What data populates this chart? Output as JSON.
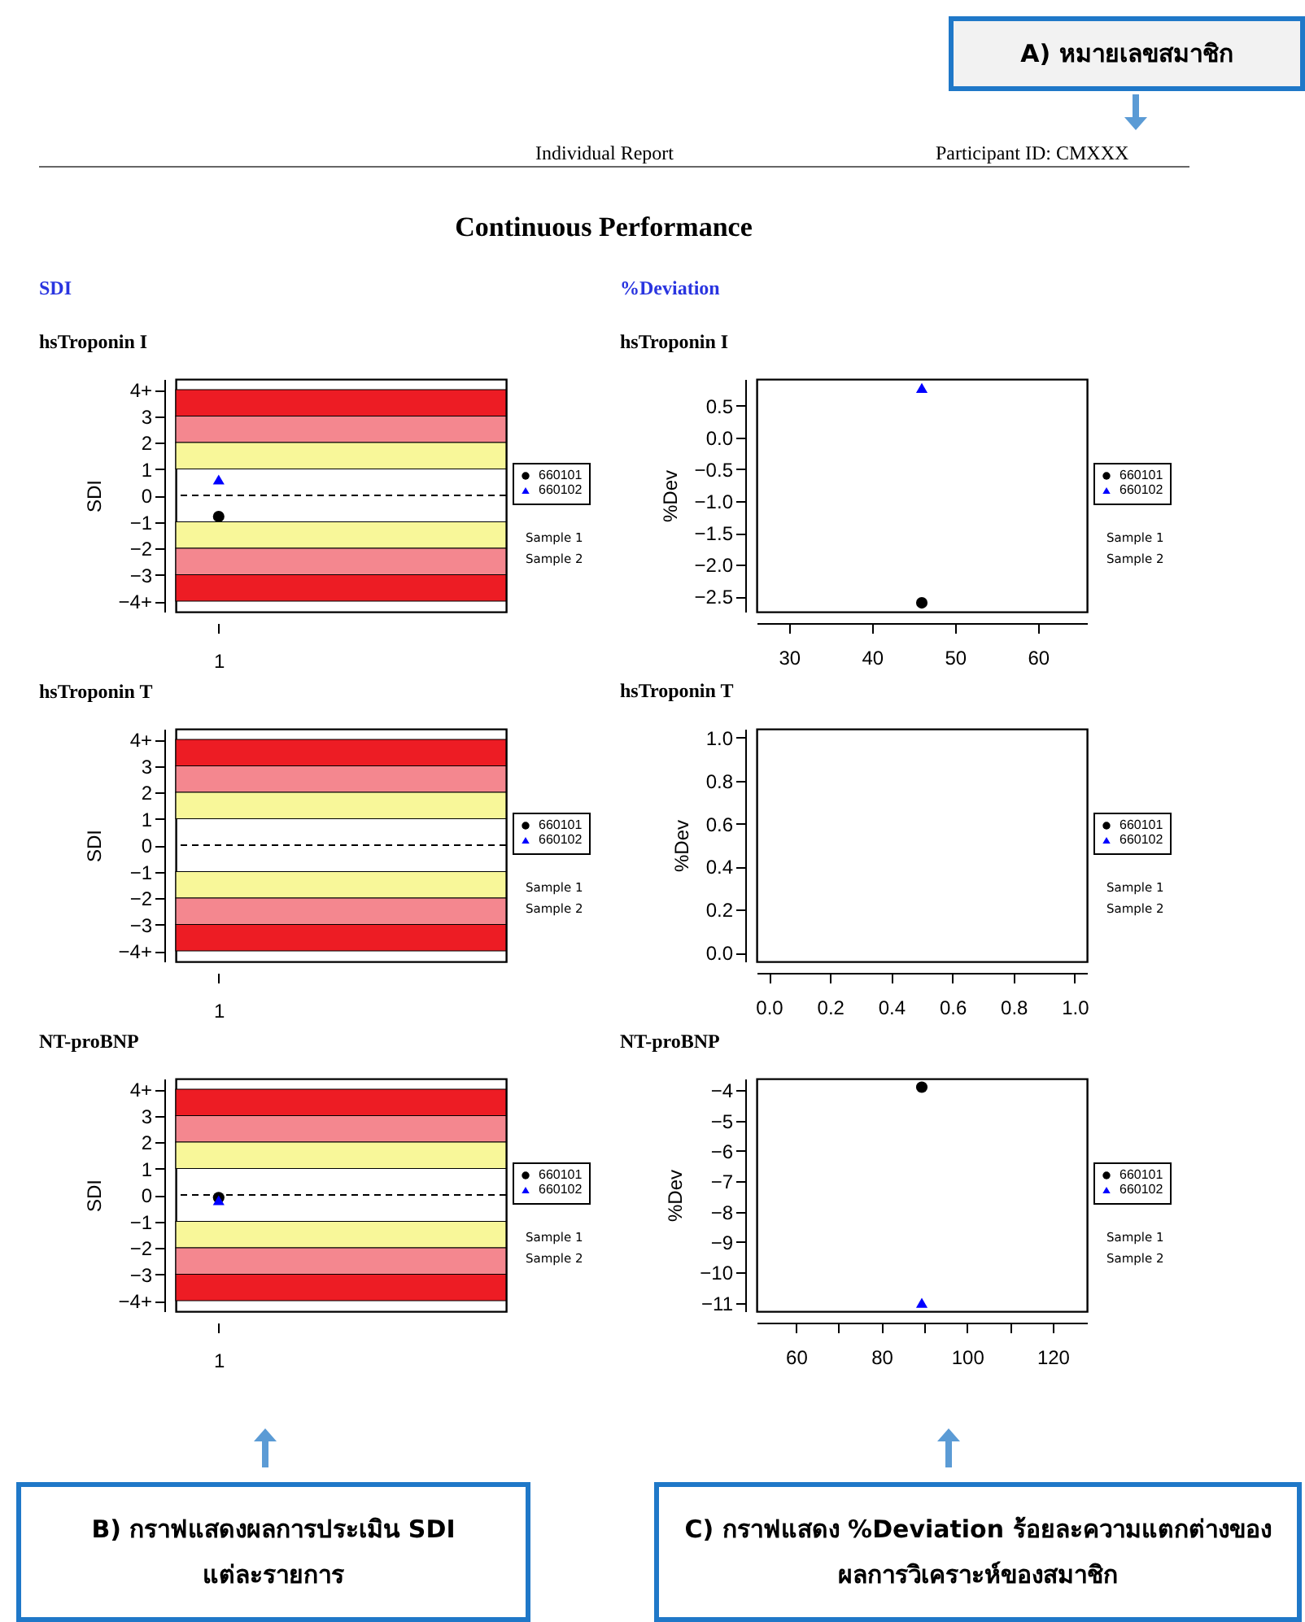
{
  "chart_data": [
    {
      "type": "other",
      "title": "Continuous Performance",
      "annotations": [
        "A) หมายเลขสมาชิก",
        "Individual Report",
        "Participant ID: CMXXX",
        "B) กราฟแสดงผลการประเมิน SDI แต่ละรายการ",
        "C) กราฟแสดง %Deviation ร้อยละความแตกต่างของผลการวิเคราะห์ของสมาชิก"
      ]
    },
    {
      "type": "scatter",
      "subtitle": "SDI",
      "title": "hsTroponin I",
      "ylabel": "SDI",
      "categories": [
        "1"
      ],
      "series": [
        {
          "name": "660101",
          "color": "#000000",
          "marker": "circle",
          "values": [
            -0.8
          ]
        },
        {
          "name": "660102",
          "color": "#0000ff",
          "marker": "triangle",
          "values": [
            0.6
          ]
        }
      ],
      "ylim": [
        -4.4,
        4.4
      ],
      "yticks": [
        {
          "value": 4,
          "label": "4+"
        },
        3,
        2,
        1,
        0,
        -1,
        -2,
        -3,
        {
          "value": -4,
          "label": "−4+"
        }
      ],
      "bands": [
        {
          "axis": "y",
          "from": 3,
          "to": 4,
          "color": "#ed1c24"
        },
        {
          "axis": "y",
          "from": 2,
          "to": 3,
          "color": "#f4878f"
        },
        {
          "axis": "y",
          "from": 1,
          "to": 2,
          "color": "#f8f799"
        },
        {
          "axis": "y",
          "from": -2,
          "to": -1,
          "color": "#f8f799"
        },
        {
          "axis": "y",
          "from": -3,
          "to": -2,
          "color": "#f4878f"
        },
        {
          "axis": "y",
          "from": -4,
          "to": -3,
          "color": "#ed1c24"
        }
      ],
      "ref_lines": [
        {
          "axis": "y",
          "value": 0,
          "color": "#000000",
          "line_style": "dashed"
        }
      ],
      "legend": "right",
      "annotations": [
        "Sample 1",
        "Sample 2"
      ]
    },
    {
      "type": "scatter",
      "subtitle": "%Deviation",
      "title": "hsTroponin I",
      "ylabel": "%Dev",
      "x": [
        46
      ],
      "series": [
        {
          "name": "660101",
          "color": "#000000",
          "marker": "circle",
          "values": [
            -2.6
          ]
        },
        {
          "name": "660102",
          "color": "#0000ff",
          "marker": "triangle",
          "values": [
            0.78
          ]
        }
      ],
      "xlim": [
        26.1,
        65.9
      ],
      "xticks": [
        30,
        40,
        50,
        60
      ],
      "ylim": [
        -2.74,
        0.92
      ],
      "yticks": [
        0.5,
        {
          "value": 0,
          "label": "0.0"
        },
        -0.5,
        {
          "value": -1,
          "label": "−1.0"
        },
        -1.5,
        {
          "value": -2,
          "label": "−2.0"
        },
        -2.5
      ],
      "legend": "right",
      "annotations": [
        "Sample 1",
        "Sample 2"
      ]
    },
    {
      "type": "scatter",
      "title": "hsTroponin T",
      "ylabel": "SDI",
      "categories": [
        "1"
      ],
      "series": [
        {
          "name": "660101",
          "color": "#000000",
          "marker": "circle",
          "values": [
            null
          ]
        },
        {
          "name": "660102",
          "color": "#0000ff",
          "marker": "triangle",
          "values": [
            null
          ]
        }
      ],
      "ylim": [
        -4.4,
        4.4
      ],
      "yticks": [
        {
          "value": 4,
          "label": "4+"
        },
        3,
        2,
        1,
        0,
        -1,
        -2,
        -3,
        {
          "value": -4,
          "label": "−4+"
        }
      ],
      "bands": [
        {
          "axis": "y",
          "from": 3,
          "to": 4,
          "color": "#ed1c24"
        },
        {
          "axis": "y",
          "from": 2,
          "to": 3,
          "color": "#f4878f"
        },
        {
          "axis": "y",
          "from": 1,
          "to": 2,
          "color": "#f8f799"
        },
        {
          "axis": "y",
          "from": -2,
          "to": -1,
          "color": "#f8f799"
        },
        {
          "axis": "y",
          "from": -3,
          "to": -2,
          "color": "#f4878f"
        },
        {
          "axis": "y",
          "from": -4,
          "to": -3,
          "color": "#ed1c24"
        }
      ],
      "ref_lines": [
        {
          "axis": "y",
          "value": 0,
          "color": "#000000",
          "line_style": "dashed"
        }
      ],
      "legend": "right",
      "annotations": [
        "Sample 1",
        "Sample 2"
      ]
    },
    {
      "type": "scatter",
      "title": "hsTroponin T",
      "ylabel": "%Dev",
      "x": [
        null
      ],
      "series": [
        {
          "name": "660101",
          "color": "#000000",
          "marker": "circle",
          "values": [
            null
          ]
        },
        {
          "name": "660102",
          "color": "#0000ff",
          "marker": "triangle",
          "values": [
            null
          ]
        }
      ],
      "xlim": [
        -0.04,
        1.04
      ],
      "xticks": [
        {
          "value": 0,
          "label": "0.0"
        },
        0.2,
        0.4,
        0.6,
        0.8,
        {
          "value": 1,
          "label": "1.0"
        }
      ],
      "ylim": [
        -0.04,
        1.04
      ],
      "yticks": [
        {
          "value": 0,
          "label": "0.0"
        },
        0.2,
        0.4,
        0.6,
        0.8,
        {
          "value": 1,
          "label": "1.0"
        }
      ],
      "legend": "right",
      "annotations": [
        "Sample 1",
        "Sample 2"
      ]
    },
    {
      "type": "scatter",
      "title": "NT-proBNP",
      "ylabel": "SDI",
      "categories": [
        "1"
      ],
      "series": [
        {
          "name": "660101",
          "color": "#000000",
          "marker": "circle",
          "values": [
            -0.1
          ]
        },
        {
          "name": "660102",
          "color": "#0000ff",
          "marker": "triangle",
          "values": [
            -0.2
          ]
        }
      ],
      "ylim": [
        -4.4,
        4.4
      ],
      "yticks": [
        {
          "value": 4,
          "label": "4+"
        },
        3,
        2,
        1,
        0,
        -1,
        -2,
        -3,
        {
          "value": -4,
          "label": "−4+"
        }
      ],
      "bands": [
        {
          "axis": "y",
          "from": 3,
          "to": 4,
          "color": "#ed1c24"
        },
        {
          "axis": "y",
          "from": 2,
          "to": 3,
          "color": "#f4878f"
        },
        {
          "axis": "y",
          "from": 1,
          "to": 2,
          "color": "#f8f799"
        },
        {
          "axis": "y",
          "from": -2,
          "to": -1,
          "color": "#f8f799"
        },
        {
          "axis": "y",
          "from": -3,
          "to": -2,
          "color": "#f4878f"
        },
        {
          "axis": "y",
          "from": -4,
          "to": -3,
          "color": "#ed1c24"
        }
      ],
      "ref_lines": [
        {
          "axis": "y",
          "value": 0,
          "color": "#000000",
          "line_style": "dashed"
        }
      ],
      "legend": "right",
      "annotations": [
        "Sample 1",
        "Sample 2"
      ]
    },
    {
      "type": "scatter",
      "title": "NT-proBNP",
      "ylabel": "%Dev",
      "x": [
        89.4
      ],
      "series": [
        {
          "name": "660101",
          "color": "#000000",
          "marker": "circle",
          "values": [
            -3.9
          ]
        },
        {
          "name": "660102",
          "color": "#0000ff",
          "marker": "triangle",
          "values": [
            -11.0
          ]
        }
      ],
      "xlim": [
        50.8,
        128.0
      ],
      "xticks": [
        60,
        {
          "value": 70,
          "label": null
        },
        80,
        {
          "value": 90,
          "label": null
        },
        100,
        {
          "value": 110,
          "label": null
        },
        120
      ],
      "ylim": [
        -11.28,
        -3.62
      ],
      "yticks": [
        -4,
        -5,
        -6,
        -7,
        -8,
        -9,
        -10,
        -11
      ],
      "legend": "right",
      "annotations": [
        "Sample 1",
        "Sample 2"
      ]
    }
  ]
}
